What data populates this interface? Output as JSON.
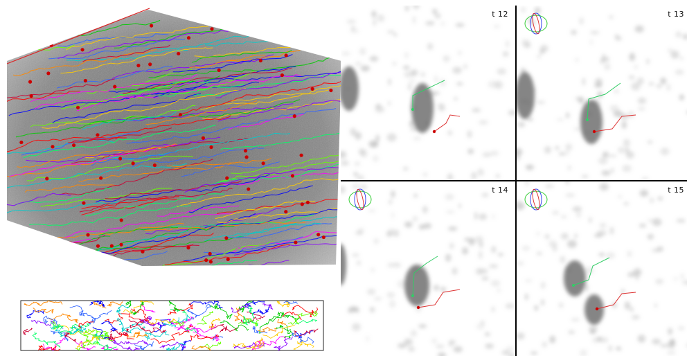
{
  "colors": {
    "background": "#ffffff",
    "divider": "#000000",
    "volume_gray": "#7a7a7a",
    "track_palette": [
      "#ff0000",
      "#00cc00",
      "#0000ff",
      "#ff00ff",
      "#00cccc",
      "#ffcc00",
      "#ff8800",
      "#8800ff",
      "#00ff66",
      "#3366ff",
      "#cc0033",
      "#66ff00"
    ],
    "cell_marker": "#cc0000",
    "track_green": "#33cc66",
    "track_red": "#dd3333",
    "axis_red": "#dd2222"
  },
  "icons": [
    "orientation-gizmo-icon"
  ],
  "frames": [
    {
      "label": "t 12",
      "gizmo": false
    },
    {
      "label": "t 13",
      "gizmo": true
    },
    {
      "label": "t 14",
      "gizmo": true
    },
    {
      "label": "t 15",
      "gizmo": true
    }
  ]
}
